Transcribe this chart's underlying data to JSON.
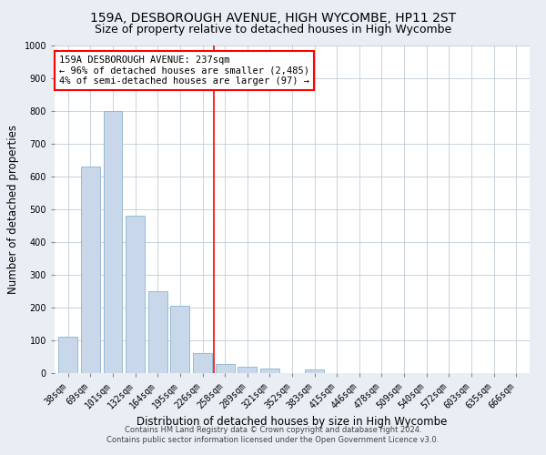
{
  "title1": "159A, DESBOROUGH AVENUE, HIGH WYCOMBE, HP11 2ST",
  "title2": "Size of property relative to detached houses in High Wycombe",
  "xlabel": "Distribution of detached houses by size in High Wycombe",
  "ylabel": "Number of detached properties",
  "footer1": "Contains HM Land Registry data © Crown copyright and database right 2024.",
  "footer2": "Contains public sector information licensed under the Open Government Licence v3.0.",
  "categories": [
    "38sqm",
    "69sqm",
    "101sqm",
    "132sqm",
    "164sqm",
    "195sqm",
    "226sqm",
    "258sqm",
    "289sqm",
    "321sqm",
    "352sqm",
    "383sqm",
    "415sqm",
    "446sqm",
    "478sqm",
    "509sqm",
    "540sqm",
    "572sqm",
    "603sqm",
    "635sqm",
    "666sqm"
  ],
  "values": [
    110,
    630,
    800,
    480,
    250,
    205,
    60,
    28,
    20,
    13,
    0,
    10,
    0,
    0,
    0,
    0,
    0,
    0,
    0,
    0,
    0
  ],
  "bar_color": "#c8d8ea",
  "bar_edge_color": "#8ab4d0",
  "vline_x": 6.5,
  "vline_color": "red",
  "annotation_text": "159A DESBOROUGH AVENUE: 237sqm\n← 96% of detached houses are smaller (2,485)\n4% of semi-detached houses are larger (97) →",
  "annotation_box_color": "white",
  "annotation_box_edge_color": "red",
  "ylim": [
    0,
    1000
  ],
  "yticks": [
    0,
    100,
    200,
    300,
    400,
    500,
    600,
    700,
    800,
    900,
    1000
  ],
  "bg_color": "#e8eef4",
  "plot_bg_color": "white",
  "grid_color": "#c0ccd8",
  "title_fontsize": 10,
  "subtitle_fontsize": 9,
  "axis_label_fontsize": 8.5,
  "tick_fontsize": 7,
  "footer_fontsize": 6,
  "annotation_fontsize": 7.5
}
